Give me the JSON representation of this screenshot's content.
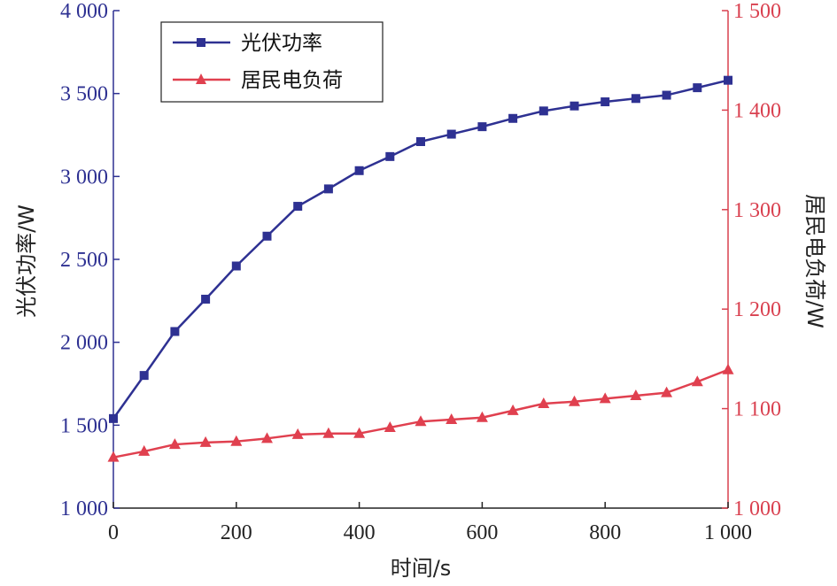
{
  "chart_data": {
    "type": "line",
    "xlabel": "时间/s",
    "ylabel_left": "光伏功率/W",
    "ylabel_right": "居民电负荷/W",
    "xlim": [
      0,
      1000
    ],
    "ylim_left": [
      1000,
      4000
    ],
    "ylim_right": [
      1000,
      1500
    ],
    "x_ticks": [
      0,
      200,
      400,
      600,
      800,
      1000
    ],
    "x_tick_labels": [
      "0",
      "200",
      "400",
      "600",
      "800",
      "1 000"
    ],
    "y_left_ticks": [
      1000,
      1500,
      2000,
      2500,
      3000,
      3500,
      4000
    ],
    "y_left_tick_labels": [
      "1 000",
      "1 500",
      "2 000",
      "2 500",
      "3 000",
      "3 500",
      "4 000"
    ],
    "y_right_ticks": [
      1000,
      1100,
      1200,
      1300,
      1400,
      1500
    ],
    "y_right_tick_labels": [
      "1 000",
      "1 100",
      "1 200",
      "1 300",
      "1 400",
      "1 500"
    ],
    "grid": false,
    "legend_position": "top-left",
    "x": [
      0,
      50,
      100,
      150,
      200,
      250,
      300,
      350,
      400,
      450,
      500,
      550,
      600,
      650,
      700,
      750,
      800,
      850,
      900,
      950,
      1000
    ],
    "series": [
      {
        "name": "光伏功率",
        "axis": "left",
        "marker": "square",
        "color": "#2e3192",
        "values": [
          1540,
          1800,
          2065,
          2260,
          2460,
          2640,
          2820,
          2925,
          3035,
          3120,
          3210,
          3255,
          3300,
          3350,
          3395,
          3425,
          3450,
          3470,
          3490,
          3535,
          3580
        ]
      },
      {
        "name": "居民电负荷",
        "axis": "right",
        "marker": "triangle",
        "color": "#e0404f",
        "values": [
          1051,
          1057,
          1064,
          1066,
          1067,
          1070,
          1074,
          1075,
          1075,
          1081,
          1087,
          1089,
          1091,
          1098,
          1105,
          1107,
          1110,
          1113,
          1116,
          1127,
          1139
        ]
      }
    ]
  }
}
